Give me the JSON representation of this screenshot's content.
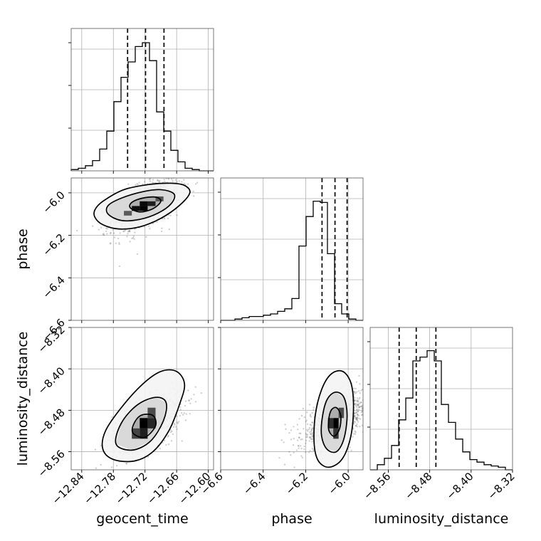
{
  "chart_data": {
    "type": "corner",
    "parameters": [
      "geocent_time",
      "phase",
      "luminosity_distance"
    ],
    "ranges": {
      "geocent_time": [
        -12.86,
        -12.59
      ],
      "phase": [
        -6.6,
        -5.93
      ],
      "luminosity_distance": [
        -8.595,
        -8.32
      ]
    },
    "ticks": {
      "geocent_time": [
        -12.84,
        -12.78,
        -12.72,
        -12.66,
        -12.6
      ],
      "phase": [
        -6.6,
        -6.4,
        -6.2,
        -6.0
      ],
      "luminosity_distance": [
        -8.56,
        -8.48,
        -8.4,
        -8.32
      ]
    },
    "tick_labels": {
      "geocent_time": [
        "−12.84",
        "−12.78",
        "−12.72",
        "−12.66",
        "−12.60"
      ],
      "phase": [
        "−6.6",
        "−6.4",
        "−6.2",
        "−6.0"
      ],
      "luminosity_distance": [
        "−8.56",
        "−8.48",
        "−8.40",
        "−8.32"
      ]
    },
    "grid": true,
    "histograms": {
      "geocent_time": {
        "bin_edges": [
          -12.86,
          -12.8465,
          -12.833,
          -12.8195,
          -12.806,
          -12.7925,
          -12.779,
          -12.7655,
          -12.752,
          -12.7385,
          -12.725,
          -12.7115,
          -12.698,
          -12.6845,
          -12.671,
          -12.6575,
          -12.644,
          -12.6305,
          -12.617,
          -12.6035,
          -12.59
        ],
        "counts": [
          0.01,
          0.02,
          0.04,
          0.08,
          0.17,
          0.31,
          0.54,
          0.73,
          0.85,
          0.97,
          1.0,
          0.86,
          0.46,
          0.31,
          0.16,
          0.07,
          0.02,
          0.01,
          0.0,
          0.0
        ],
        "quantiles": [
          -12.753,
          -12.719,
          -12.684
        ]
      },
      "phase": {
        "bin_edges": [
          -6.6,
          -6.5665,
          -6.533,
          -6.4995,
          -6.466,
          -6.4325,
          -6.399,
          -6.3655,
          -6.332,
          -6.2985,
          -6.265,
          -6.2315,
          -6.198,
          -6.1645,
          -6.131,
          -6.0975,
          -6.064,
          -6.0305,
          -5.997,
          -5.9635,
          -5.93
        ],
        "counts": [
          0.0,
          0.0,
          0.01,
          0.02,
          0.03,
          0.03,
          0.04,
          0.05,
          0.07,
          0.09,
          0.17,
          0.58,
          0.81,
          0.93,
          0.92,
          0.52,
          0.13,
          0.05,
          0.01,
          0.0
        ],
        "quantiles": [
          -6.123,
          -6.062,
          -6.005
        ]
      },
      "luminosity_distance": {
        "bin_edges": [
          -8.595,
          -8.5812,
          -8.5675,
          -8.5537,
          -8.54,
          -8.5262,
          -8.5125,
          -8.4987,
          -8.485,
          -8.4712,
          -8.4575,
          -8.4437,
          -8.43,
          -8.4162,
          -8.4025,
          -8.3887,
          -8.375,
          -8.3612,
          -8.3475,
          -8.3337,
          -8.32
        ],
        "counts": [
          0.0,
          0.04,
          0.09,
          0.19,
          0.39,
          0.56,
          0.85,
          0.88,
          0.93,
          0.85,
          0.51,
          0.37,
          0.24,
          0.14,
          0.08,
          0.06,
          0.04,
          0.03,
          0.02,
          0.0
        ],
        "quantiles": [
          -8.539,
          -8.506,
          -8.468
        ]
      }
    },
    "pairs": [
      {
        "x": "geocent_time",
        "y": "phase",
        "center": [
          -12.718,
          -6.055
        ],
        "contours": [
          [
            [
              -12.815,
              -6.115
            ],
            [
              -12.8,
              -6.15
            ],
            [
              -12.77,
              -6.17
            ],
            [
              -12.73,
              -6.16
            ],
            [
              -12.69,
              -6.12
            ],
            [
              -12.655,
              -6.06
            ],
            [
              -12.635,
              -6.0
            ],
            [
              -12.645,
              -5.965
            ],
            [
              -12.67,
              -5.955
            ],
            [
              -12.71,
              -5.96
            ],
            [
              -12.76,
              -5.985
            ],
            [
              -12.8,
              -6.04
            ],
            [
              -12.815,
              -6.08
            ]
          ],
          [
            [
              -12.79,
              -6.1
            ],
            [
              -12.765,
              -6.13
            ],
            [
              -12.73,
              -6.125
            ],
            [
              -12.695,
              -6.095
            ],
            [
              -12.67,
              -6.05
            ],
            [
              -12.665,
              -6.005
            ],
            [
              -12.69,
              -5.985
            ],
            [
              -12.725,
              -5.995
            ],
            [
              -12.765,
              -6.025
            ],
            [
              -12.79,
              -6.06
            ]
          ],
          [
            [
              -12.748,
              -6.07
            ],
            [
              -12.73,
              -6.09
            ],
            [
              -12.705,
              -6.075
            ],
            [
              -12.69,
              -6.04
            ],
            [
              -12.7,
              -6.02
            ],
            [
              -12.725,
              -6.025
            ],
            [
              -12.745,
              -6.045
            ]
          ]
        ],
        "cells": [
          {
            "x": [
              -12.745,
              -12.73
            ],
            "y": [
              -6.085,
              -6.062
            ],
            "d": 0.9
          },
          {
            "x": [
              -12.73,
              -12.715
            ],
            "y": [
              -6.085,
              -6.062
            ],
            "d": 1.0
          },
          {
            "x": [
              -12.715,
              -12.7
            ],
            "y": [
              -6.062,
              -6.04
            ],
            "d": 0.8
          },
          {
            "x": [
              -12.73,
              -12.715
            ],
            "y": [
              -6.062,
              -6.04
            ],
            "d": 0.95
          },
          {
            "x": [
              -12.76,
              -12.745
            ],
            "y": [
              -6.107,
              -6.085
            ],
            "d": 0.4
          },
          {
            "x": [
              -12.7,
              -12.685
            ],
            "y": [
              -6.04,
              -6.017
            ],
            "d": 0.45
          }
        ]
      },
      {
        "x": "geocent_time",
        "y": "luminosity_distance",
        "center": [
          -12.717,
          -8.505
        ],
        "contours": [
          [
            [
              -12.8,
              -8.555
            ],
            [
              -12.78,
              -8.575
            ],
            [
              -12.74,
              -8.578
            ],
            [
              -12.705,
              -8.56
            ],
            [
              -12.675,
              -8.52
            ],
            [
              -12.655,
              -8.47
            ],
            [
              -12.645,
              -8.43
            ],
            [
              -12.66,
              -8.405
            ],
            [
              -12.69,
              -8.405
            ],
            [
              -12.725,
              -8.43
            ],
            [
              -12.765,
              -8.475
            ],
            [
              -12.795,
              -8.52
            ]
          ],
          [
            [
              -12.775,
              -8.545
            ],
            [
              -12.745,
              -8.557
            ],
            [
              -12.71,
              -8.54
            ],
            [
              -12.685,
              -8.5
            ],
            [
              -12.68,
              -8.465
            ],
            [
              -12.7,
              -8.455
            ],
            [
              -12.735,
              -8.47
            ],
            [
              -12.765,
              -8.505
            ]
          ],
          [
            [
              -12.742,
              -8.525
            ],
            [
              -12.72,
              -8.532
            ],
            [
              -12.7,
              -8.51
            ],
            [
              -12.705,
              -8.49
            ],
            [
              -12.728,
              -8.49
            ],
            [
              -12.742,
              -8.508
            ]
          ]
        ],
        "cells": [
          {
            "x": [
              -12.73,
              -12.715
            ],
            "y": [
              -8.515,
              -8.495
            ],
            "d": 1.0
          },
          {
            "x": [
              -12.715,
              -12.7
            ],
            "y": [
              -8.515,
              -8.495
            ],
            "d": 0.75
          },
          {
            "x": [
              -12.73,
              -12.715
            ],
            "y": [
              -8.535,
              -8.515
            ],
            "d": 0.8
          },
          {
            "x": [
              -12.745,
              -12.73
            ],
            "y": [
              -8.535,
              -8.515
            ],
            "d": 0.55
          },
          {
            "x": [
              -12.715,
              -12.7
            ],
            "y": [
              -8.495,
              -8.475
            ],
            "d": 0.5
          }
        ]
      },
      {
        "x": "phase",
        "y": "luminosity_distance",
        "center": [
          -6.055,
          -8.5
        ],
        "contours": [
          [
            [
              -6.16,
              -8.545
            ],
            [
              -6.14,
              -8.578
            ],
            [
              -6.09,
              -8.59
            ],
            [
              -6.03,
              -8.575
            ],
            [
              -5.99,
              -8.535
            ],
            [
              -5.975,
              -8.48
            ],
            [
              -5.985,
              -8.43
            ],
            [
              -6.025,
              -8.405
            ],
            [
              -6.08,
              -8.41
            ],
            [
              -6.125,
              -8.44
            ],
            [
              -6.155,
              -8.49
            ]
          ],
          [
            [
              -6.125,
              -8.53
            ],
            [
              -6.1,
              -8.555
            ],
            [
              -6.055,
              -8.56
            ],
            [
              -6.02,
              -8.535
            ],
            [
              -6.005,
              -8.49
            ],
            [
              -6.02,
              -8.455
            ],
            [
              -6.06,
              -8.445
            ],
            [
              -6.1,
              -8.46
            ],
            [
              -6.122,
              -8.495
            ]
          ],
          [
            [
              -6.09,
              -8.52
            ],
            [
              -6.065,
              -8.53
            ],
            [
              -6.04,
              -8.515
            ],
            [
              -6.035,
              -8.49
            ],
            [
              -6.055,
              -8.475
            ],
            [
              -6.08,
              -8.48
            ],
            [
              -6.092,
              -8.5
            ]
          ]
        ],
        "cells": [
          {
            "x": [
              -6.07,
              -6.045
            ],
            "y": [
              -8.515,
              -8.495
            ],
            "d": 1.0
          },
          {
            "x": [
              -6.095,
              -6.07
            ],
            "y": [
              -8.515,
              -8.495
            ],
            "d": 0.7
          },
          {
            "x": [
              -6.07,
              -6.045
            ],
            "y": [
              -8.535,
              -8.515
            ],
            "d": 0.65
          },
          {
            "x": [
              -6.045,
              -6.02
            ],
            "y": [
              -8.495,
              -8.475
            ],
            "d": 0.5
          }
        ]
      }
    ]
  }
}
